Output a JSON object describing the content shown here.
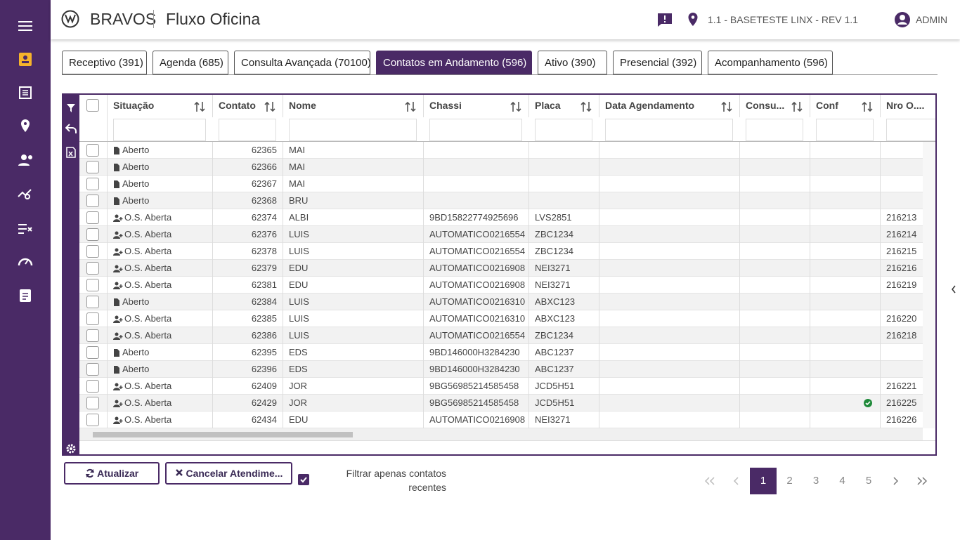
{
  "header": {
    "brand": "BRAVOS",
    "app": "Fluxo Oficina",
    "location": "1.1 - BASETESTE LINX - REV 1.1",
    "user": "ADMIN"
  },
  "tabs": {
    "items": [
      "Receptivo (391)",
      "Agenda (685)",
      "Consulta Avançada (70100)",
      "Contatos em Andamento (596)",
      "Ativo (390)",
      "Presencial (392)",
      "Acompanhamento (596)"
    ],
    "active": 3
  },
  "table": {
    "columns": [
      "Situação",
      "Contato",
      "Nome",
      "Chassi",
      "Placa",
      "Data Agendamento",
      "Consu...",
      "Conf",
      "Nro O...."
    ],
    "rows": [
      [
        "Aberto",
        62365,
        "MAI",
        null,
        null,
        null,
        null,
        null,
        null
      ],
      [
        "Aberto",
        62366,
        "MAI",
        null,
        null,
        null,
        null,
        null,
        null
      ],
      [
        "Aberto",
        62367,
        "MAI",
        null,
        null,
        null,
        null,
        null,
        null
      ],
      [
        "Aberto",
        62368,
        "BRU",
        null,
        null,
        null,
        null,
        null,
        null
      ],
      [
        "O.S. Aberta",
        62374,
        "ALBI",
        "9BD15822774925696",
        "LVS2851",
        null,
        null,
        null,
        216213
      ],
      [
        "O.S. Aberta",
        62376,
        "LUIS",
        "AUTOMATICO0216554",
        "ZBC1234",
        null,
        null,
        null,
        216214
      ],
      [
        "O.S. Aberta",
        62378,
        "LUIS",
        "AUTOMATICO0216554",
        "ZBC1234",
        null,
        null,
        null,
        216215
      ],
      [
        "O.S. Aberta",
        62379,
        "EDU",
        "AUTOMATICO0216908",
        "NEI3271",
        null,
        null,
        null,
        216216
      ],
      [
        "O.S. Aberta",
        62381,
        "EDU",
        "AUTOMATICO0216908",
        "NEI3271",
        null,
        null,
        null,
        216219
      ],
      [
        "Aberto",
        62384,
        "LUIS",
        "AUTOMATICO0216310",
        "ABXC123",
        null,
        null,
        null,
        null
      ],
      [
        "O.S. Aberta",
        62385,
        "LUIS",
        "AUTOMATICO0216310",
        "ABXC123",
        null,
        null,
        null,
        216220
      ],
      [
        "O.S. Aberta",
        62386,
        "LUIS",
        "AUTOMATICO0216554",
        "ZBC1234",
        null,
        null,
        null,
        216218
      ],
      [
        "Aberto",
        62395,
        "EDS",
        "9BD146000H3284230",
        "ABC1237",
        null,
        null,
        null,
        null
      ],
      [
        "Aberto",
        62396,
        "EDS",
        "9BD146000H3284230",
        "ABC1237",
        null,
        null,
        null,
        null
      ],
      [
        "O.S. Aberta",
        62409,
        "JOR",
        "9BG56985214585458",
        "JCD5H51",
        null,
        null,
        null,
        216221
      ],
      [
        "O.S. Aberta",
        62429,
        "JOR",
        "9BG56985214585458",
        "JCD5H51",
        null,
        null,
        true,
        216225
      ],
      [
        "O.S. Aberta",
        62434,
        "EDU",
        "AUTOMATICO0216908",
        "NEI3271",
        null,
        null,
        null,
        216226
      ]
    ]
  },
  "footer": {
    "refresh": "Atualizar",
    "cancel": "Cancelar Atendime...",
    "filter_label": "Filtrar apenas contatos recentes",
    "filter_checked": true,
    "pages": [
      1,
      2,
      3,
      4,
      5
    ],
    "current_page": 1
  }
}
